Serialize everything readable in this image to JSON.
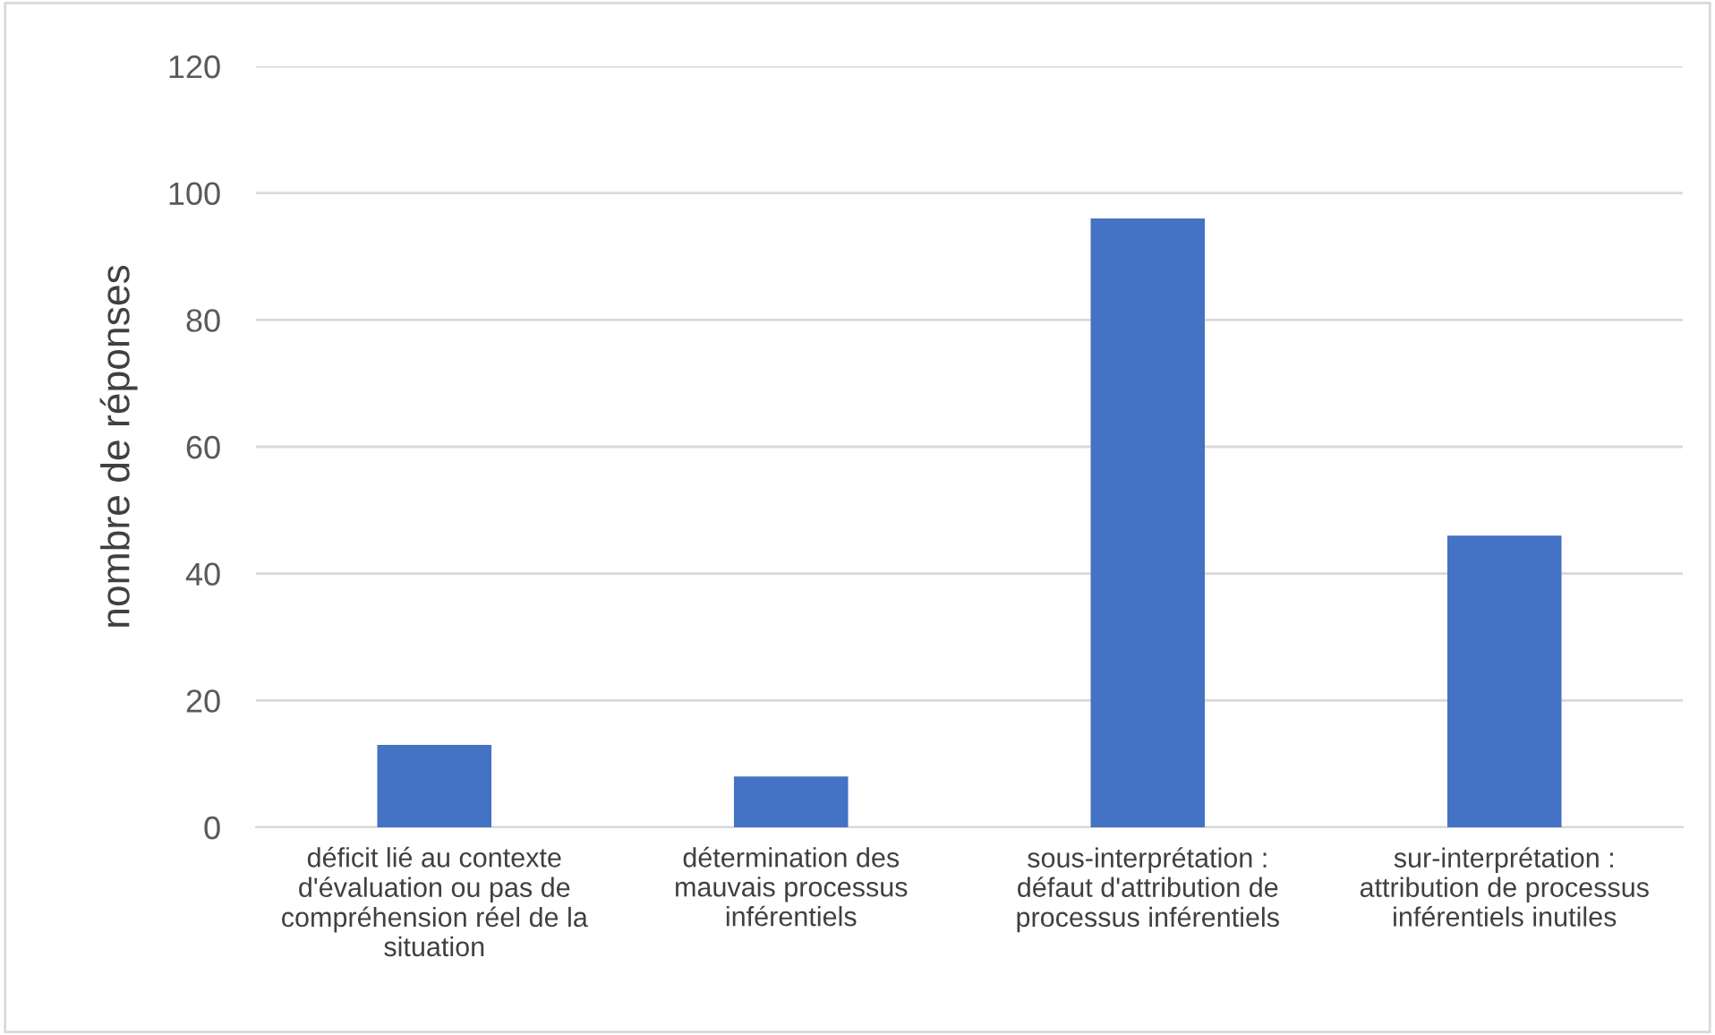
{
  "chart_data": {
    "type": "bar",
    "ylabel": "nombre de réponses",
    "categories": [
      "déficit lié au contexte d'évaluation ou pas de compréhension réel de la situation",
      "détermination des mauvais processus inférentiels",
      "sous-interprétation : défaut d'attribution de processus inférentiels",
      "sur-interprétation : attribution de processus inférentiels inutiles"
    ],
    "values": [
      13,
      8,
      96,
      46
    ],
    "color": "#4472c4",
    "ylim": [
      0,
      120
    ],
    "yticks": [
      0,
      20,
      40,
      60,
      80,
      100,
      120
    ],
    "grid": "y"
  }
}
